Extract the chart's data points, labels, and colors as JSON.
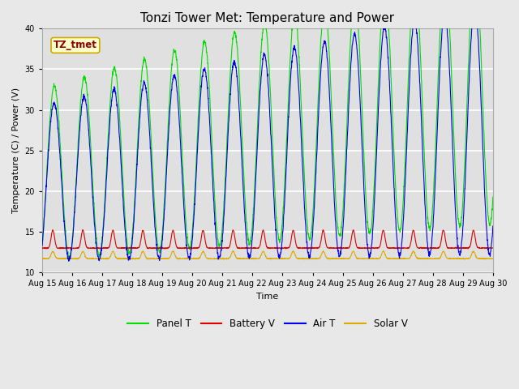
{
  "title": "Tonzi Tower Met: Temperature and Power",
  "xlabel": "Time",
  "ylabel": "Temperature (C) / Power (V)",
  "ylim": [
    10,
    40
  ],
  "xtick_labels": [
    "Aug 15",
    "Aug 16",
    "Aug 17",
    "Aug 18",
    "Aug 19",
    "Aug 20",
    "Aug 21",
    "Aug 22",
    "Aug 23",
    "Aug 24",
    "Aug 25",
    "Aug 26",
    "Aug 27",
    "Aug 28",
    "Aug 29",
    "Aug 30"
  ],
  "fig_bg_color": "#e8e8e8",
  "plot_bg_color": "#e0e0e0",
  "panel_t_color": "#00dd00",
  "battery_v_color": "#dd0000",
  "air_t_color": "#0000ee",
  "solar_v_color": "#ddaa00",
  "annotation_text": "TZ_tmet",
  "annotation_color": "#8b0000",
  "annotation_bg": "#ffffcc",
  "annotation_edge": "#ccaa00",
  "legend_labels": [
    "Panel T",
    "Battery V",
    "Air T",
    "Solar V"
  ],
  "title_fontsize": 11,
  "axis_fontsize": 8,
  "tick_fontsize": 7
}
